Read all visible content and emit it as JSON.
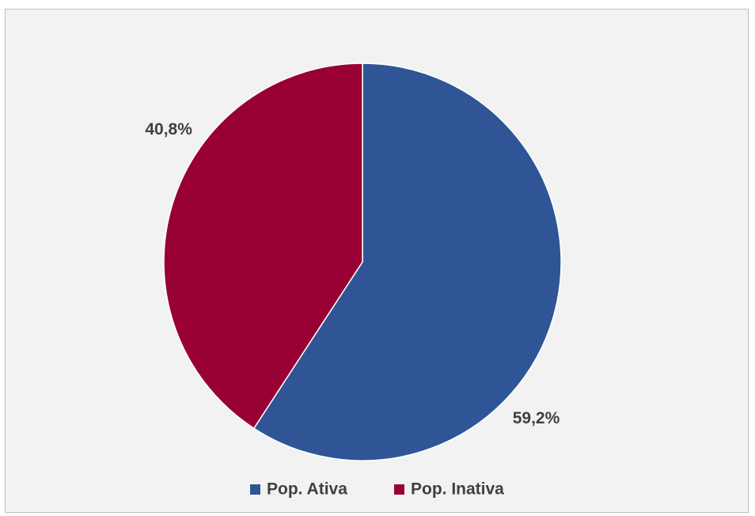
{
  "chart_data": {
    "type": "pie",
    "title": "",
    "categories": [
      "Pop. Ativa",
      "Pop. Inativa"
    ],
    "values": [
      59.2,
      40.8
    ],
    "labels": [
      "59,2%",
      "40,8%"
    ],
    "colors": [
      "#2f5597",
      "#990033"
    ],
    "legend": {
      "position": "bottom",
      "entries": [
        "Pop. Ativa",
        "Pop. Inativa"
      ]
    },
    "start_angle_deg": 0,
    "direction": "clockwise",
    "background": "#f2f2f2"
  }
}
